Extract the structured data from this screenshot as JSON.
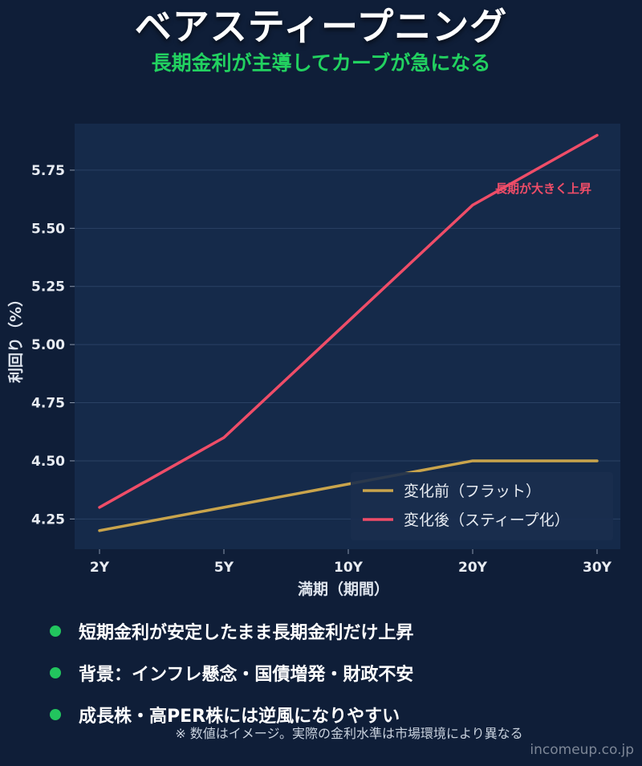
{
  "title": "ベアスティープニング",
  "subtitle": "長期金利が主導してカーブが急になる",
  "colors": {
    "background": "#0f1e38",
    "plot_background": "#152a4a",
    "accent_green": "#22d160",
    "before_line": "#c9a44c",
    "after_line": "#ef4d68"
  },
  "chart_data": {
    "type": "line",
    "categories": [
      "2Y",
      "5Y",
      "10Y",
      "20Y",
      "30Y"
    ],
    "series": [
      {
        "name": "変化前（フラット）",
        "values": [
          4.2,
          4.3,
          4.4,
          4.5,
          4.5
        ]
      },
      {
        "name": "変化後（スティープ化）",
        "values": [
          4.3,
          4.6,
          5.1,
          5.6,
          5.9
        ]
      }
    ],
    "xlabel": "満期（期間）",
    "ylabel": "利回り（%）",
    "ylim": [
      4.12,
      5.95
    ],
    "yticks": [
      "4.25",
      "4.50",
      "4.75",
      "5.00",
      "5.25",
      "5.50",
      "5.75"
    ],
    "annotation": "長期が大きく上昇",
    "grid": true,
    "legend_position": "bottom-right"
  },
  "bullets": [
    "短期金利が安定したまま長期金利だけ上昇",
    "背景：インフレ懸念・国債増発・財政不安",
    "成長株・高PER株には逆風になりやすい"
  ],
  "footnote": "※ 数値はイメージ。実際の金利水準は市場環境により異なる",
  "credit": "incomeup.co.jp"
}
